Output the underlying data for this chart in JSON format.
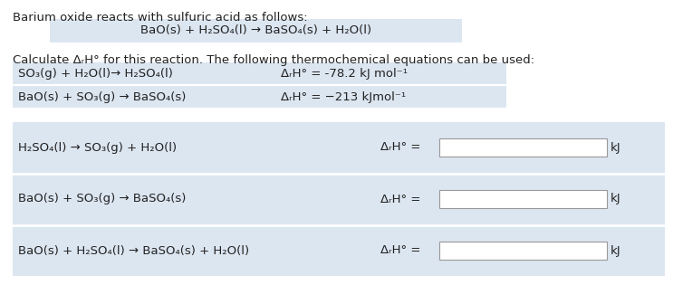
{
  "title_text": "Barium oxide reacts with sulfuric acid as follows:",
  "main_eq": "BaO(s) + H₂SO₄(l) → BaSO₄(s) + H₂O(l)",
  "calc_text": "Calculate ΔᵣH° for this reaction. The following thermochemical equations can be used:",
  "given_eq1": "SO₃(g) + H₂O(l)→ H₂SO₄(l)",
  "given_val1": "ΔᵣH° = -78.2 kJ mol⁻¹",
  "given_eq2": "BaO(s) + SO₃(g) → BaSO₄(s)",
  "given_val2": "ΔᵣH° = −213 kJmol⁻¹",
  "ans_eq1": "H₂SO₄(l) → SO₃(g) + H₂O(l)",
  "ans_eq2": "BaO(s) + SO₃(g) → BaSO₄(s)",
  "ans_eq3": "BaO(s) + H₂SO₄(l) → BaSO₄(s) + H₂O(l)",
  "delta_label": "ΔᵣH° =",
  "kj_label": "kJ",
  "bg_color": "#ffffff",
  "highlight_blue": "#dce6f1",
  "border_color": "#999999",
  "text_color": "#222222",
  "font_size": 9.5
}
